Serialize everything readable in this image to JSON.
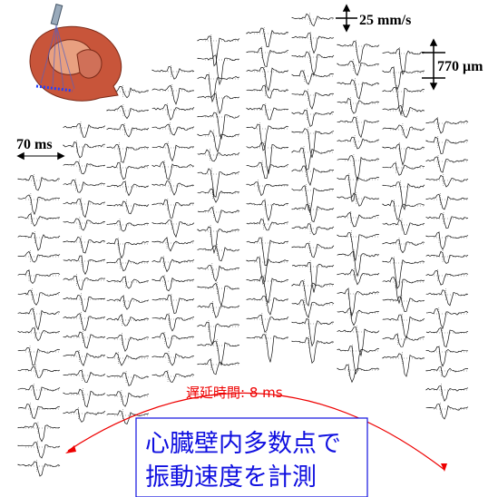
{
  "labels": {
    "velocity_scale": "25 mm/s",
    "displacement_scale": "770 μm",
    "time_scale": "70 ms",
    "delay": "遅延時間: 8 ms"
  },
  "caption": {
    "lines": [
      "心臓壁内多数点で",
      "振動速度を計測"
    ]
  }
}
